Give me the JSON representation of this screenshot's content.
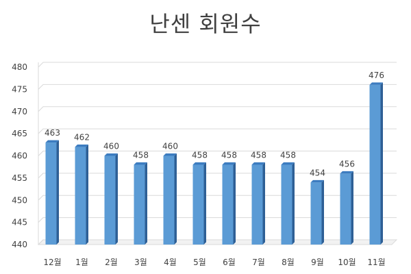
{
  "chart_data": {
    "type": "bar",
    "title": "난센 회원수",
    "categories": [
      "12월",
      "1월",
      "2월",
      "3월",
      "4월",
      "5월",
      "6월",
      "7월",
      "8월",
      "9월",
      "10월",
      "11월"
    ],
    "values": [
      463,
      462,
      460,
      458,
      460,
      458,
      458,
      458,
      458,
      454,
      456,
      476
    ],
    "ylim": [
      440,
      480
    ],
    "yticks": [
      440,
      445,
      450,
      455,
      460,
      465,
      470,
      475,
      480
    ],
    "grid": true,
    "legend": "none",
    "bar_color": "#5B9BD5",
    "bar_top_color": "#3C7CC0",
    "bar_side_color": "#2E5F95",
    "grid_color": "#D9D9D9"
  }
}
